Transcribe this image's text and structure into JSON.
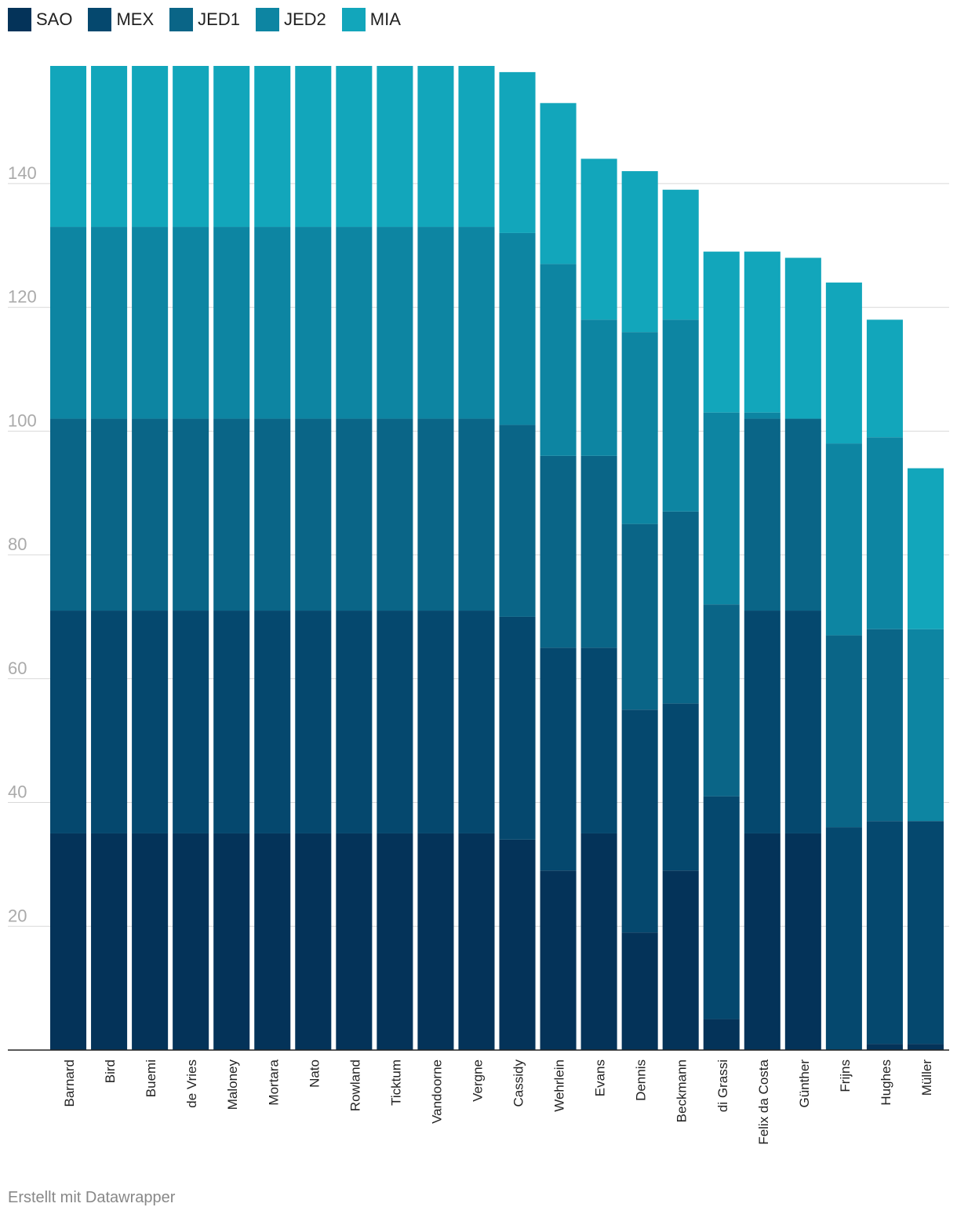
{
  "chart_data": {
    "type": "bar",
    "stacked": true,
    "title": "",
    "xlabel": "",
    "ylabel": "",
    "ylim": [
      0,
      160
    ],
    "y_ticks": [
      20,
      40,
      60,
      80,
      100,
      120,
      140
    ],
    "categories": [
      "Barnard",
      "Bird",
      "Buemi",
      "de Vries",
      "Maloney",
      "Mortara",
      "Nato",
      "Rowland",
      "Ticktum",
      "Vandoorne",
      "Vergne",
      "Cassidy",
      "Wehrlein",
      "Evans",
      "Dennis",
      "Beckmann",
      "di Grassi",
      "Felix da Costa",
      "Günther",
      "Frijns",
      "Hughes",
      "Müller"
    ],
    "series": [
      {
        "name": "SAO",
        "color": "#043359",
        "values": [
          35,
          35,
          35,
          35,
          35,
          35,
          35,
          35,
          35,
          35,
          35,
          34,
          29,
          35,
          19,
          29,
          5,
          35,
          35,
          0,
          1,
          1
        ]
      },
      {
        "name": "MEX",
        "color": "#05486e",
        "values": [
          36,
          36,
          36,
          36,
          36,
          36,
          36,
          36,
          36,
          36,
          36,
          36,
          36,
          30,
          36,
          27,
          36,
          36,
          36,
          36,
          36,
          36
        ]
      },
      {
        "name": "JED1",
        "color": "#0a6587",
        "values": [
          31,
          31,
          31,
          31,
          31,
          31,
          31,
          31,
          31,
          31,
          31,
          31,
          31,
          31,
          30,
          31,
          31,
          31,
          31,
          31,
          31,
          0
        ]
      },
      {
        "name": "JED2",
        "color": "#0d85a2",
        "values": [
          31,
          31,
          31,
          31,
          31,
          31,
          31,
          31,
          31,
          31,
          31,
          31,
          31,
          22,
          31,
          31,
          31,
          1,
          0,
          31,
          31,
          31
        ]
      },
      {
        "name": "MIA",
        "color": "#12a6bb",
        "values": [
          26,
          26,
          26,
          26,
          26,
          26,
          26,
          26,
          26,
          26,
          26,
          26,
          26,
          26,
          26,
          21,
          26,
          26,
          26,
          26,
          19,
          26
        ]
      }
    ]
  },
  "footer": {
    "text": "Erstellt mit Datawrapper"
  }
}
